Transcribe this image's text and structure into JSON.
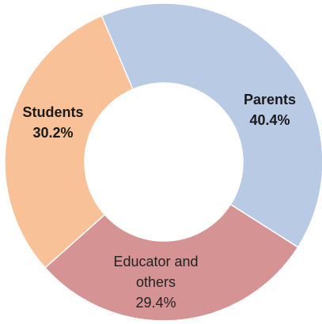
{
  "chart_data": {
    "type": "pie",
    "style": "donut",
    "title": "",
    "series": [
      {
        "labels": [
          "Parents",
          "Educator and others",
          "Students"
        ],
        "values": [
          40.4,
          29.4,
          30.2
        ],
        "value_labels": [
          "40.4%",
          "29.4%",
          "30.2%"
        ],
        "colors": [
          "#b9cae4",
          "#d69393",
          "#f8c198"
        ]
      }
    ],
    "legend": "none",
    "data_labels": "on-slice",
    "label_lines": {
      "parents": [
        "Parents",
        "40.4%"
      ],
      "students": [
        "Students",
        "30.2%"
      ],
      "educators": [
        "Educator and",
        "others",
        "29.4%"
      ]
    }
  }
}
